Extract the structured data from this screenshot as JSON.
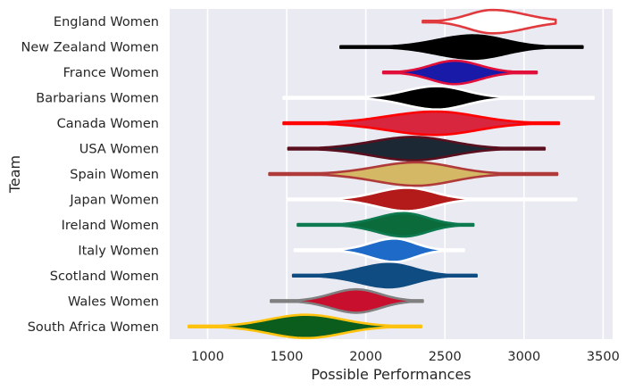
{
  "chart_data": {
    "type": "violin",
    "orientation": "horizontal",
    "xlabel": "Possible Performances",
    "ylabel": "Team",
    "xlim": [
      760,
      3560
    ],
    "xticks": [
      1000,
      1500,
      2000,
      2500,
      3000,
      3500
    ],
    "grid": true,
    "background": "#eaeaf2",
    "gridColor": "#ffffff",
    "series": [
      {
        "team": "England Women",
        "min": 2360,
        "max": 3200,
        "center": 2800,
        "sdL": 150,
        "sdR": 210,
        "fill": "#ffffff",
        "edge": "#e03a3e"
      },
      {
        "team": "New Zealand Women",
        "min": 1840,
        "max": 3370,
        "center": 2680,
        "sdL": 230,
        "sdR": 200,
        "fill": "#000000",
        "edge": "#000000"
      },
      {
        "team": "France Women",
        "min": 2110,
        "max": 3080,
        "center": 2560,
        "sdL": 150,
        "sdR": 160,
        "fill": "#1a1aa8",
        "edge": "#e0103a"
      },
      {
        "team": "Barbarians Women",
        "min": 1480,
        "max": 3440,
        "center": 2450,
        "sdL": 200,
        "sdR": 180,
        "fill": "#000000",
        "edge": "#ffffff"
      },
      {
        "team": "Canada Women",
        "min": 1480,
        "max": 3220,
        "center": 2440,
        "sdL": 300,
        "sdR": 260,
        "fill": "#d7263d",
        "edge": "#ff0000"
      },
      {
        "team": "USA Women",
        "min": 1510,
        "max": 3130,
        "center": 2300,
        "sdL": 260,
        "sdR": 240,
        "fill": "#1c2833",
        "edge": "#5a0f1e"
      },
      {
        "team": "Spain Women",
        "min": 1390,
        "max": 3210,
        "center": 2320,
        "sdL": 260,
        "sdR": 230,
        "fill": "#d4b865",
        "edge": "#b03a3a"
      },
      {
        "team": "Japan Women",
        "min": 1510,
        "max": 3330,
        "center": 2260,
        "sdL": 190,
        "sdR": 170,
        "fill": "#b31b1b",
        "edge": "#ffffff"
      },
      {
        "team": "Ireland Women",
        "min": 1570,
        "max": 2680,
        "center": 2240,
        "sdL": 170,
        "sdR": 150,
        "fill": "#0b6b3a",
        "edge": "#0e7a50"
      },
      {
        "team": "Italy Women",
        "min": 1550,
        "max": 2620,
        "center": 2180,
        "sdL": 150,
        "sdR": 130,
        "fill": "#1e6ac8",
        "edge": "#ffffff"
      },
      {
        "team": "Scotland Women",
        "min": 1540,
        "max": 2700,
        "center": 2150,
        "sdL": 190,
        "sdR": 160,
        "fill": "#0f4c81",
        "edge": "#0f4c81"
      },
      {
        "team": "Wales Women",
        "min": 1400,
        "max": 2360,
        "center": 1940,
        "sdL": 160,
        "sdR": 150,
        "fill": "#c8102e",
        "edge": "#808080"
      },
      {
        "team": "South Africa Women",
        "min": 880,
        "max": 2350,
        "center": 1620,
        "sdL": 230,
        "sdR": 230,
        "fill": "#0b5d1e",
        "edge": "#ffc20e"
      }
    ]
  }
}
